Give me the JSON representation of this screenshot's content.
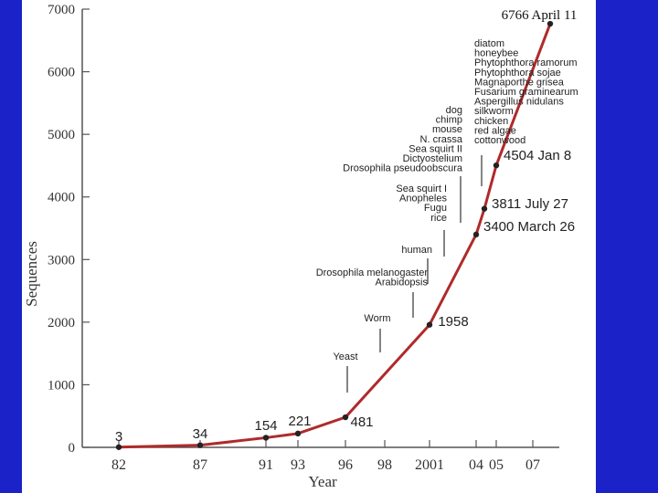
{
  "chart_data": {
    "type": "line",
    "title": "",
    "xlabel": "Year",
    "ylabel": "Sequences",
    "ylim": [
      0,
      7000
    ],
    "grid": false,
    "colors": {
      "line": "#b02a2a",
      "points": "#222222",
      "background": "#1a22c8",
      "panel": "#ffffff"
    },
    "x_ticks": [
      "82",
      "87",
      "91",
      "93",
      "96",
      "98",
      "2001",
      "04",
      "05",
      "07"
    ],
    "y_ticks": [
      "0",
      "1000",
      "2000",
      "3000",
      "4000",
      "5000",
      "6000",
      "7000"
    ],
    "points": [
      {
        "x": "82",
        "y": 3,
        "label": "3"
      },
      {
        "x": "87",
        "y": 34,
        "label": "34"
      },
      {
        "x": "91",
        "y": 154,
        "label": "154"
      },
      {
        "x": "93",
        "y": 221,
        "label": "221"
      },
      {
        "x": "96",
        "y": 481,
        "label": "481"
      },
      {
        "x": "2001",
        "y": 1958,
        "label": "1958"
      },
      {
        "x": "04",
        "y": 3400,
        "label": "3400 March 26"
      },
      {
        "x": "05",
        "y": 3811,
        "label": "3811 July 27"
      },
      {
        "x": "05",
        "y": 4504,
        "label": "4504 Jan 8"
      },
      {
        "x": "07",
        "y": 6766,
        "label": "6766 April 11"
      }
    ],
    "annotations": [
      {
        "lines": [
          "Yeast"
        ]
      },
      {
        "lines": [
          "Worm"
        ]
      },
      {
        "lines": [
          "Drosophila melanogaster",
          "Arabidopsis"
        ]
      },
      {
        "lines": [
          "human"
        ]
      },
      {
        "lines": [
          "Sea squirt I",
          "Anopheles",
          "Fugu",
          "rice"
        ]
      },
      {
        "lines": [
          "dog",
          "chimp",
          "mouse",
          "N. crassa",
          "Sea squirt II",
          "Dictyostelium",
          "Drosophila pseudoobscura"
        ]
      },
      {
        "lines": [
          "diatom",
          "honeybee",
          "Phytophthora ramorum",
          "Phytophthora sojae",
          "Magnaporthe grisea",
          "Fusarium graminearum",
          "Aspergillus nidulans",
          "silkworm",
          "chicken",
          "red algae",
          "cottonwood"
        ]
      }
    ]
  }
}
